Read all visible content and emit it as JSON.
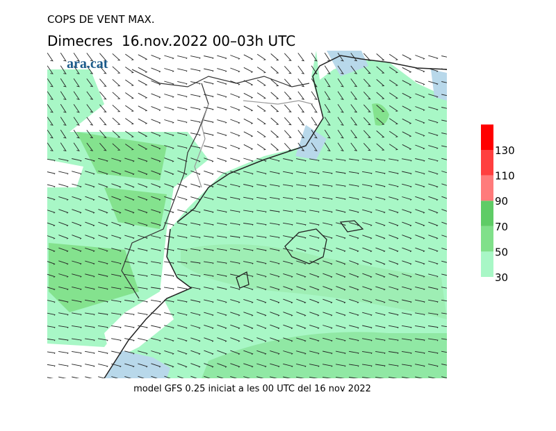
{
  "header": {
    "title": "COPS DE VENT MAX.",
    "subtitle": "Dimecres  16.nov.2022 00–03h UTC",
    "logo": "ara.cat"
  },
  "footer": "model GFS 0.25 iniciat a les 00 UTC del 16 nov 2022",
  "legend": {
    "ticks": [
      30,
      50,
      70,
      90,
      110,
      130
    ],
    "colors": [
      "#a8f7c6",
      "#80e08a",
      "#5fcc66",
      "#ff7b7b",
      "#ff3f3f",
      "#ff0000"
    ]
  }
}
